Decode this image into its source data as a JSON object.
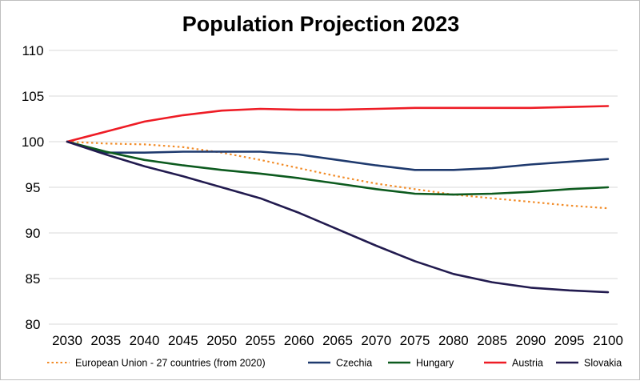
{
  "chart_data": {
    "type": "line",
    "title": "Population Projection 2023",
    "xlabel": "",
    "ylabel": "",
    "x": [
      "2030",
      "2035",
      "2040",
      "2045",
      "2050",
      "2055",
      "2060",
      "2065",
      "2070",
      "2075",
      "2080",
      "2085",
      "2090",
      "2095",
      "2100"
    ],
    "ylim": [
      80,
      110
    ],
    "yticks": [
      80,
      85,
      90,
      95,
      100,
      105,
      110
    ],
    "grid": true,
    "legend_position": "bottom",
    "series": [
      {
        "name": "European Union - 27 countries (from 2020)",
        "color": "#f28c28",
        "dash": "dotted",
        "values": [
          100,
          99.8,
          99.7,
          99.4,
          98.8,
          98.0,
          97.1,
          96.2,
          95.4,
          94.8,
          94.2,
          93.8,
          93.4,
          93.0,
          92.7
        ]
      },
      {
        "name": "Czechia",
        "color": "#1f3a6e",
        "dash": "solid",
        "values": [
          100,
          98.8,
          98.8,
          98.9,
          98.9,
          98.9,
          98.6,
          98.0,
          97.4,
          96.9,
          96.9,
          97.1,
          97.5,
          97.8,
          98.1
        ]
      },
      {
        "name": "Hungary",
        "color": "#0d5b1f",
        "dash": "solid",
        "values": [
          100,
          98.9,
          98.0,
          97.4,
          96.9,
          96.5,
          96.0,
          95.4,
          94.8,
          94.3,
          94.2,
          94.3,
          94.5,
          94.8,
          95.0
        ]
      },
      {
        "name": "Austria",
        "color": "#ee1c25",
        "dash": "solid",
        "values": [
          100,
          101.1,
          102.2,
          102.9,
          103.4,
          103.6,
          103.5,
          103.5,
          103.6,
          103.7,
          103.7,
          103.7,
          103.7,
          103.8,
          103.9
        ]
      },
      {
        "name": "Slovakia",
        "color": "#221b4f",
        "dash": "solid",
        "values": [
          100,
          98.6,
          97.3,
          96.2,
          95.0,
          93.8,
          92.2,
          90.4,
          88.6,
          86.9,
          85.5,
          84.6,
          84.0,
          83.7,
          83.5
        ]
      }
    ]
  }
}
